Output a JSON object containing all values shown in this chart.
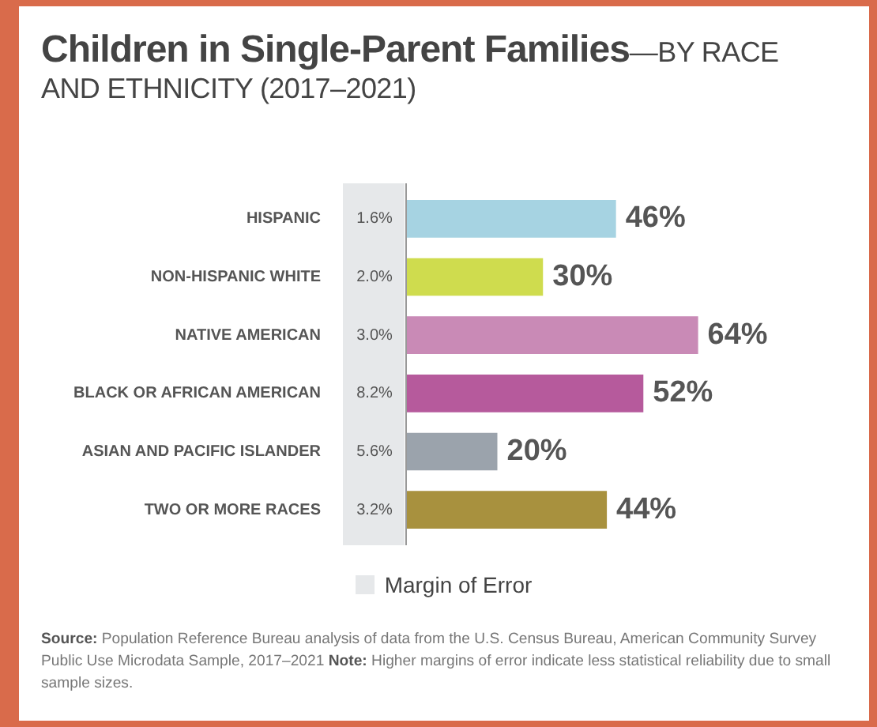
{
  "chart_data": {
    "type": "bar",
    "orientation": "horizontal",
    "title": "Children in Single-Parent Families",
    "subtitle": "—BY RACE AND ETHNICITY (2017–2021)",
    "categories": [
      "HISPANIC",
      "NON-HISPANIC WHITE",
      "NATIVE AMERICAN",
      "BLACK OR AFRICAN AMERICAN",
      "ASIAN AND PACIFIC ISLANDER",
      "TWO OR MORE RACES"
    ],
    "values": [
      46,
      30,
      64,
      52,
      20,
      44
    ],
    "colors": [
      "#a6d3e2",
      "#cfdc4e",
      "#c98ab6",
      "#b65a9c",
      "#9ba3ac",
      "#a8913e"
    ],
    "value_labels": [
      "46%",
      "30%",
      "64%",
      "52%",
      "20%",
      "44%"
    ],
    "legend_title": "Margin of Error",
    "annotations": [
      "1.6%",
      "2.0%",
      "3.0%",
      "8.2%",
      "5.6%",
      "3.2%",
      "Source: Population Reference Bureau analysis of data from the U.S. Census Bureau, American Community Survey Public Use Microdata Sample, 2017–2021 Note: Higher margins of error indicate less statistical reliability due to small sample sizes."
    ]
  }
}
